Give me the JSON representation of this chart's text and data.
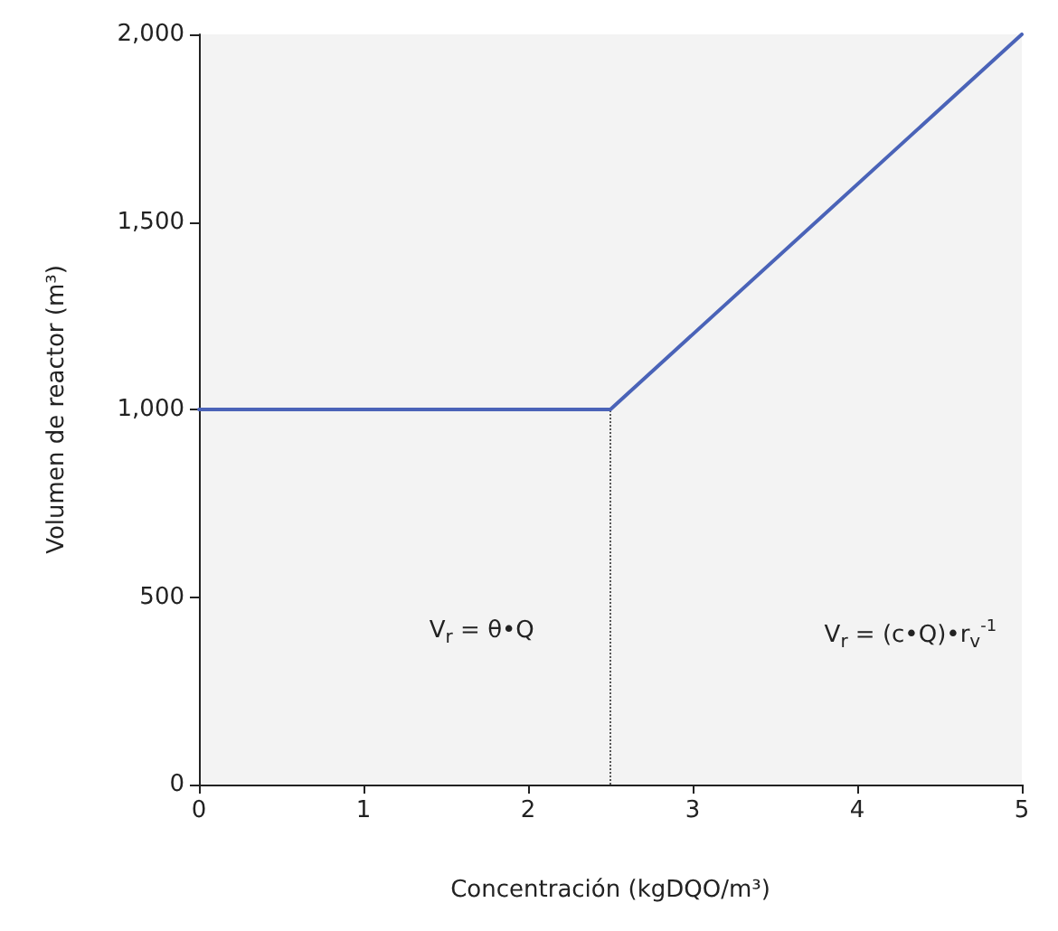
{
  "chart_data": {
    "type": "line",
    "xlabel": "Concentración (kgDQO/m³)",
    "ylabel": "Volumen de reactor (m³)",
    "x": [
      0,
      2.5,
      5
    ],
    "series": [
      {
        "color": "#4a63b8",
        "values": [
          1000,
          1000,
          2000
        ]
      }
    ],
    "xlim": [
      0,
      5
    ],
    "xticks": [
      0,
      1,
      2,
      3,
      4,
      5
    ],
    "ylim": [
      0,
      2000
    ],
    "yticks": [
      0,
      500,
      {
        "value": 1000,
        "label": "1,000"
      },
      {
        "value": 1500,
        "label": "1,500"
      },
      {
        "value": 2000,
        "label": "2,000"
      }
    ],
    "ref_lines": [
      {
        "axis": "x",
        "value": 2.5,
        "line_style": "dotted",
        "color": "#555555"
      }
    ],
    "annotations": [
      "V$_{r}$ = θ•Q",
      "V$_{r}$ = (c•Q)•r$_{v}$$^{-1}$"
    ],
    "grid": false,
    "marker": "none",
    "line_style": "solid"
  }
}
